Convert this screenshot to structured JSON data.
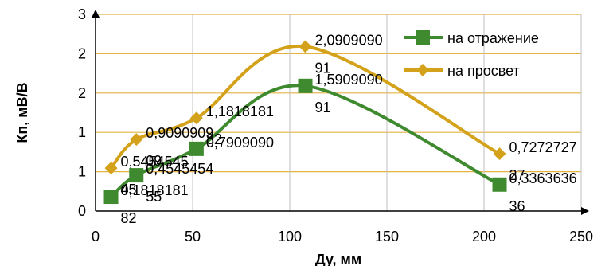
{
  "chart_data": {
    "type": "line",
    "title": "",
    "xlabel": "Ду, мм",
    "ylabel": "Кп, мВ/В",
    "xlim": [
      0,
      250
    ],
    "ylim": [
      0,
      2.5
    ],
    "x_ticks": [
      "0",
      "50",
      "100",
      "150",
      "200",
      "250"
    ],
    "y_ticks": [
      "0",
      "1",
      "1",
      "2",
      "2",
      "3"
    ],
    "grid": "vertical and horizontal",
    "legend_position": "top-right",
    "smoothed": true,
    "series": [
      {
        "name": "на отражение",
        "color": "#3f8a2f",
        "marker": "square",
        "x": [
          8,
          21,
          52,
          108,
          208
        ],
        "y": [
          0.1818181,
          0.45454545,
          0.790909,
          1.590909,
          0.3363636
        ],
        "labels": [
          [
            "0,1818181",
            "82"
          ],
          [
            "0,4545454",
            "55"
          ],
          [
            "0,7909090"
          ],
          [
            "1,5909090",
            "91"
          ],
          [
            "0,3363636",
            "36"
          ]
        ]
      },
      {
        "name": "на просвет",
        "color": "#d4a21a",
        "marker": "diamond",
        "x": [
          8,
          21,
          52,
          108,
          208
        ],
        "y": [
          0.5454545,
          0.9090909,
          1.1818181,
          2.090909,
          0.7272727
        ],
        "labels": [
          [
            "0,5454545",
            "45"
          ],
          [
            "0,9090909",
            "09"
          ],
          [
            "1,1818181",
            "82"
          ],
          [
            "2,0909090",
            "91"
          ],
          [
            "0,7272727",
            "27"
          ]
        ]
      }
    ]
  }
}
